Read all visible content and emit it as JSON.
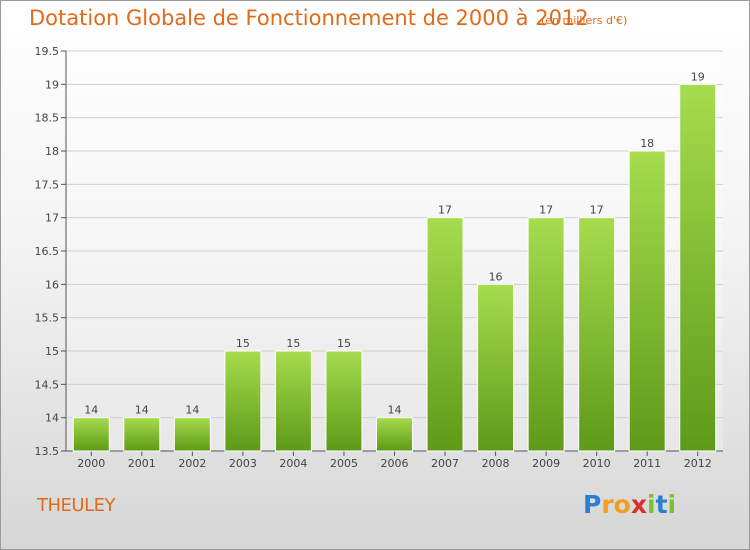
{
  "title": "Dotation Globale de Fonctionnement de 2000 à 2012",
  "subtitle": "(en milliers d'€)",
  "commune": "THEULEY",
  "logo": {
    "letters": [
      "P",
      "r",
      "o",
      "x",
      "i",
      "t",
      "i"
    ],
    "colors": [
      "#2a7fd0",
      "#f0a020",
      "#f0a020",
      "#d8312a",
      "#7cc22e",
      "#2a7fd0",
      "#7cc22e"
    ]
  },
  "colors": {
    "bar_light": "#a6dc4e",
    "bar_dark": "#5e9a18",
    "title": "#e06a1a",
    "axis": "#555555",
    "grid": "#cfcfcf"
  },
  "chart_data": {
    "type": "bar",
    "categories": [
      "2000",
      "2001",
      "2002",
      "2003",
      "2004",
      "2005",
      "2006",
      "2007",
      "2008",
      "2009",
      "2010",
      "2011",
      "2012"
    ],
    "values": [
      14,
      14,
      14,
      15,
      15,
      15,
      14,
      17,
      16,
      17,
      17,
      18,
      19
    ],
    "data_labels": [
      "14",
      "14",
      "14",
      "15",
      "15",
      "15",
      "14",
      "17",
      "16",
      "17",
      "17",
      "18",
      "19"
    ],
    "yticks": [
      13.5,
      14,
      14.5,
      15,
      15.5,
      16,
      16.5,
      17,
      17.5,
      18,
      18.5,
      19,
      19.5
    ],
    "ylim": [
      13.5,
      19.5
    ],
    "grid": true,
    "title": "Dotation Globale de Fonctionnement de 2000 à 2012",
    "xlabel": "",
    "ylabel": ""
  }
}
